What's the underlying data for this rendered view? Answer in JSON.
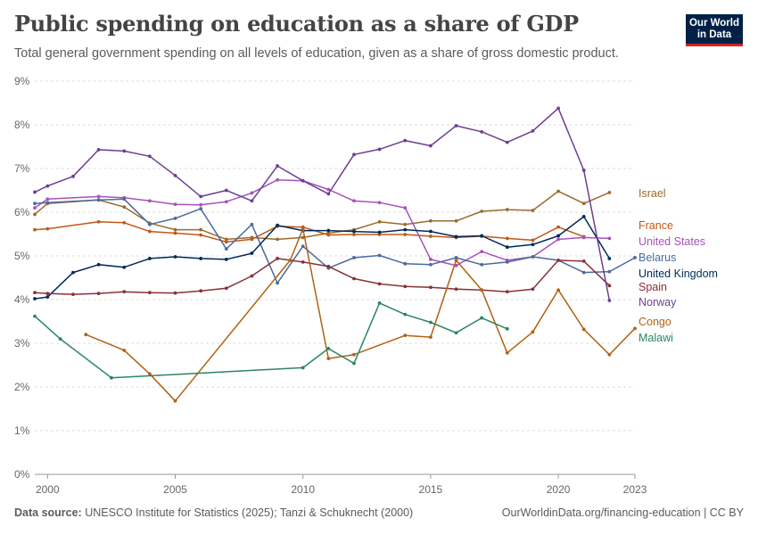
{
  "header": {
    "title": "Public spending on education as a share of GDP",
    "subtitle": "Total general government spending on all levels of education, given as a share of gross domestic product."
  },
  "logo": {
    "line1": "Our World",
    "line2": "in Data",
    "bg_color": "#002147",
    "accent_color": "#ce261e"
  },
  "footer": {
    "source_label": "Data source:",
    "source_text": "UNESCO Institute for Statistics (2025); Tanzi & Schuknecht (2000)",
    "url": "OurWorldinData.org/financing-education | CC BY"
  },
  "chart_data": {
    "type": "line",
    "ylim": [
      0,
      9
    ],
    "xlim": [
      1999.5,
      2023
    ],
    "y_ticks": [
      0,
      1,
      2,
      3,
      4,
      5,
      6,
      7,
      8,
      9
    ],
    "y_tick_labels": [
      "0%",
      "1%",
      "2%",
      "3%",
      "4%",
      "5%",
      "6%",
      "7%",
      "8%",
      "9%"
    ],
    "x_ticks": [
      2000,
      2005,
      2010,
      2015,
      2020,
      2023
    ],
    "x_tick_labels": [
      "2000",
      "2005",
      "2010",
      "2015",
      "2020",
      "2023"
    ],
    "grid": "horizontal dashed",
    "series": [
      {
        "name": "Israel",
        "color": "#9a6c2e",
        "x": [
          1999.5,
          2000,
          2002,
          2003,
          2004,
          2005,
          2006,
          2007,
          2008,
          2009,
          2010,
          2011,
          2012,
          2013,
          2014,
          2015,
          2016,
          2017,
          2018,
          2019,
          2020,
          2021,
          2022
        ],
        "y": [
          5.95,
          6.2,
          6.28,
          6.12,
          5.75,
          5.6,
          5.6,
          5.38,
          5.42,
          5.38,
          5.42,
          5.52,
          5.6,
          5.78,
          5.72,
          5.8,
          5.8,
          6.02,
          6.06,
          6.04,
          6.48,
          6.2,
          6.45
        ]
      },
      {
        "name": "France",
        "color": "#c05917",
        "x": [
          1999.5,
          2000,
          2002,
          2003,
          2004,
          2005,
          2006,
          2007,
          2008,
          2009,
          2010,
          2011,
          2012,
          2013,
          2014,
          2015,
          2016,
          2017,
          2018,
          2019,
          2020,
          2021
        ],
        "y": [
          5.6,
          5.62,
          5.78,
          5.76,
          5.56,
          5.52,
          5.48,
          5.32,
          5.38,
          5.68,
          5.66,
          5.48,
          5.49,
          5.49,
          5.49,
          5.45,
          5.42,
          5.45,
          5.4,
          5.36,
          5.66,
          5.44
        ]
      },
      {
        "name": "United States",
        "color": "#a652ba",
        "x": [
          1999.5,
          2000,
          2002,
          2003,
          2004,
          2005,
          2006,
          2007,
          2008,
          2009,
          2010,
          2011,
          2012,
          2013,
          2014,
          2015,
          2016,
          2017,
          2018,
          2019,
          2020,
          2021,
          2022
        ],
        "y": [
          6.1,
          6.3,
          6.36,
          6.33,
          6.26,
          6.18,
          6.17,
          6.24,
          6.44,
          6.74,
          6.72,
          6.52,
          6.26,
          6.22,
          6.1,
          4.92,
          4.78,
          5.1,
          4.9,
          4.98,
          5.38,
          5.42,
          5.4
        ]
      },
      {
        "name": "Belarus",
        "color": "#4c6a9c",
        "x": [
          1999.5,
          2000,
          2002,
          2003,
          2004,
          2005,
          2006,
          2007,
          2008,
          2009,
          2010,
          2011,
          2012,
          2013,
          2014,
          2015,
          2016,
          2017,
          2018,
          2019,
          2020,
          2021,
          2022,
          2023
        ],
        "y": [
          6.2,
          6.22,
          6.28,
          6.3,
          5.72,
          5.86,
          6.08,
          5.16,
          5.72,
          4.38,
          5.22,
          4.72,
          4.96,
          5.01,
          4.82,
          4.8,
          4.96,
          4.8,
          4.86,
          4.98,
          4.9,
          4.62,
          4.64,
          4.96
        ]
      },
      {
        "name": "United Kingdom",
        "color": "#00295b",
        "x": [
          1999.5,
          2000,
          2001,
          2002,
          2003,
          2004,
          2005,
          2006,
          2007,
          2008,
          2009,
          2010,
          2011,
          2012,
          2013,
          2014,
          2015,
          2016,
          2017,
          2018,
          2019,
          2020,
          2021,
          2022
        ],
        "y": [
          4.02,
          4.06,
          4.62,
          4.8,
          4.74,
          4.94,
          4.98,
          4.94,
          4.92,
          5.06,
          5.7,
          5.58,
          5.58,
          5.56,
          5.54,
          5.6,
          5.56,
          5.44,
          5.46,
          5.2,
          5.26,
          5.46,
          5.9,
          4.94
        ]
      },
      {
        "name": "Spain",
        "color": "#883039",
        "x": [
          1999.5,
          2000,
          2001,
          2002,
          2003,
          2004,
          2005,
          2006,
          2007,
          2008,
          2009,
          2010,
          2011,
          2012,
          2013,
          2014,
          2015,
          2016,
          2017,
          2018,
          2019,
          2020,
          2021,
          2022
        ],
        "y": [
          4.16,
          4.14,
          4.12,
          4.14,
          4.18,
          4.16,
          4.15,
          4.2,
          4.26,
          4.54,
          4.94,
          4.86,
          4.76,
          4.48,
          4.36,
          4.3,
          4.28,
          4.24,
          4.22,
          4.18,
          4.24,
          4.9,
          4.88,
          4.32
        ]
      },
      {
        "name": "Norway",
        "color": "#6d3e91",
        "x": [
          1999.5,
          2000,
          2001,
          2002,
          2003,
          2004,
          2005,
          2006,
          2007,
          2008,
          2009,
          2010,
          2011,
          2012,
          2013,
          2014,
          2015,
          2016,
          2017,
          2018,
          2019,
          2020,
          2021,
          2022
        ],
        "y": [
          6.46,
          6.6,
          6.82,
          7.43,
          7.4,
          7.28,
          6.84,
          6.36,
          6.5,
          6.26,
          7.06,
          6.72,
          6.42,
          7.32,
          7.44,
          7.64,
          7.52,
          7.98,
          7.84,
          7.6,
          7.86,
          8.38,
          6.96,
          3.98
        ]
      },
      {
        "name": "Congo",
        "color": "#b16214",
        "x": [
          2001.5,
          2003,
          2004,
          2005,
          2009.5,
          2010,
          2011,
          2012,
          2014,
          2015,
          2016,
          2017,
          2018,
          2019,
          2020,
          2021,
          2022,
          2023
        ],
        "y": [
          3.2,
          2.84,
          2.3,
          1.68,
          4.9,
          5.62,
          2.65,
          2.74,
          3.18,
          3.14,
          4.9,
          4.22,
          2.78,
          3.26,
          4.22,
          3.32,
          2.74,
          3.34
        ]
      },
      {
        "name": "Malawi",
        "color": "#2c8465",
        "x": [
          1999.5,
          2000.5,
          2002.5,
          2010,
          2011,
          2012,
          2013,
          2014,
          2015,
          2016,
          2017,
          2018
        ],
        "y": [
          3.62,
          3.1,
          2.21,
          2.44,
          2.88,
          2.54,
          3.92,
          3.66,
          3.48,
          3.24,
          3.58,
          3.33
        ]
      }
    ],
    "legend": [
      {
        "label": "Israel",
        "color": "#9a6c2e"
      },
      {
        "label": "France",
        "color": "#c05917"
      },
      {
        "label": "United States",
        "color": "#a652ba"
      },
      {
        "label": "Belarus",
        "color": "#4c6a9c"
      },
      {
        "label": "United Kingdom",
        "color": "#00295b"
      },
      {
        "label": "Spain",
        "color": "#883039"
      },
      {
        "label": "Norway",
        "color": "#6d3e91"
      },
      {
        "label": "Congo",
        "color": "#b16214"
      },
      {
        "label": "Malawi",
        "color": "#2c8465"
      }
    ],
    "legend_placement": "right"
  }
}
